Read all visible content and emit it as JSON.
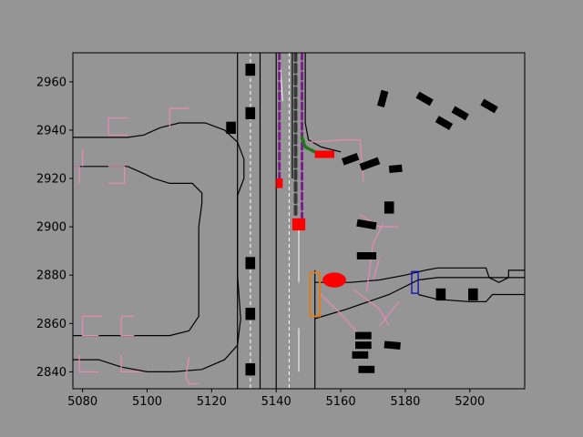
{
  "chart_data": {
    "type": "scatter",
    "title": "",
    "xlabel": "",
    "ylabel": "",
    "xlim": [
      5077,
      5217
    ],
    "ylim": [
      2833,
      2972
    ],
    "xticks": [
      5080,
      5100,
      5120,
      5140,
      5160,
      5180,
      5200
    ],
    "yticks": [
      2840,
      2860,
      2880,
      2900,
      2920,
      2940,
      2960
    ],
    "grid": false,
    "colors": {
      "figure_bg": "#949594",
      "axes_bg": "#949594",
      "road": "#000000",
      "crosswalk": "#e88bb3",
      "vehicle": "#000000",
      "ego": "#ff0000",
      "route": "#7b1f8a",
      "dashed_route": "#3a3a3a",
      "planned": "#1a7a1a",
      "lane_divider": "#ffffff",
      "ped_box": "#e07b1a",
      "gate": "#0000cc"
    },
    "road_edges": [
      [
        [
          5077,
          2937
        ],
        [
          5094,
          2937
        ],
        [
          5099,
          2938
        ],
        [
          5104,
          2941
        ],
        [
          5110,
          2943
        ],
        [
          5118,
          2943
        ],
        [
          5124,
          2940
        ],
        [
          5128,
          2935
        ],
        [
          5130,
          2928
        ],
        [
          5130,
          2920
        ],
        [
          5128,
          2913
        ],
        [
          5128,
          2880
        ],
        [
          5129,
          2862
        ],
        [
          5128,
          2851
        ],
        [
          5124,
          2845
        ],
        [
          5117,
          2841
        ],
        [
          5108,
          2840
        ],
        [
          5100,
          2840
        ],
        [
          5092,
          2842
        ],
        [
          5085,
          2845
        ],
        [
          5077,
          2845
        ]
      ],
      [
        [
          5077,
          2925
        ],
        [
          5094,
          2925
        ],
        [
          5099,
          2922
        ],
        [
          5102,
          2920
        ],
        [
          5107,
          2918
        ],
        [
          5114,
          2918
        ],
        [
          5117,
          2914
        ],
        [
          5117,
          2910
        ],
        [
          5116,
          2900
        ],
        [
          5116,
          2880
        ],
        [
          5116,
          2863
        ],
        [
          5113,
          2857
        ],
        [
          5107,
          2855
        ],
        [
          5095,
          2855
        ],
        [
          5077,
          2855
        ]
      ],
      [
        [
          5128,
          2972
        ],
        [
          5128,
          2833
        ]
      ],
      [
        [
          5135,
          2972
        ],
        [
          5135,
          2833
        ]
      ],
      [
        [
          5140,
          2972
        ],
        [
          5140,
          2833
        ]
      ],
      [
        [
          5145,
          2972
        ],
        [
          5145,
          2920
        ]
      ],
      [
        [
          5149,
          2972
        ],
        [
          5149,
          2943
        ],
        [
          5150,
          2936
        ],
        [
          5154,
          2933
        ],
        [
          5160,
          2931
        ]
      ],
      [
        [
          5152,
          2882
        ],
        [
          5152,
          2833
        ]
      ],
      [
        [
          5152,
          2862
        ],
        [
          5162,
          2866
        ],
        [
          5175,
          2872
        ],
        [
          5184,
          2878
        ],
        [
          5190,
          2879
        ],
        [
          5205,
          2879
        ],
        [
          5217,
          2879
        ]
      ],
      [
        [
          5152,
          2877
        ],
        [
          5163,
          2877
        ],
        [
          5172,
          2878
        ],
        [
          5180,
          2880
        ],
        [
          5186,
          2882
        ],
        [
          5190,
          2883
        ],
        [
          5205,
          2883
        ],
        [
          5206,
          2879
        ],
        [
          5209,
          2877
        ],
        [
          5212,
          2879
        ],
        [
          5212,
          2882
        ],
        [
          5217,
          2882
        ]
      ],
      [
        [
          5184,
          2872
        ],
        [
          5190,
          2870
        ],
        [
          5200,
          2869
        ],
        [
          5205,
          2869
        ],
        [
          5207,
          2872
        ],
        [
          5217,
          2872
        ]
      ]
    ],
    "lane_dividers": [
      {
        "points": [
          [
            5132,
            2972
          ],
          [
            5132,
            2833
          ]
        ],
        "dashed": true
      },
      [
        [
          5141,
          2972
        ],
        [
          5142,
          2952
        ]
      ],
      {
        "points": [
          [
            5144,
            2972
          ],
          [
            5144,
            2833
          ]
        ],
        "dashed": true
      },
      [
        [
          5147,
          2900
        ],
        [
          5147,
          2877
        ]
      ],
      [
        [
          5147,
          2858
        ],
        [
          5147,
          2840
        ]
      ]
    ],
    "crosswalks": [
      [
        [
          5077,
          2925
        ],
        [
          5079,
          2925
        ],
        [
          5079,
          2918
        ]
      ],
      [
        [
          5080,
          2932
        ],
        [
          5080,
          2925
        ]
      ],
      [
        [
          5088,
          2938
        ],
        [
          5088,
          2945
        ],
        [
          5094,
          2945
        ]
      ],
      [
        [
          5088,
          2938
        ],
        [
          5094,
          2938
        ]
      ],
      [
        [
          5107,
          2941
        ],
        [
          5107,
          2949
        ],
        [
          5113,
          2949
        ]
      ],
      [
        [
          5093,
          2925
        ],
        [
          5093,
          2918
        ],
        [
          5088,
          2918
        ]
      ],
      [
        [
          5093,
          2925
        ],
        [
          5088,
          2925
        ]
      ],
      [
        [
          5080,
          2863
        ],
        [
          5080,
          2855
        ],
        [
          5085,
          2855
        ]
      ],
      [
        [
          5080,
          2863
        ],
        [
          5086,
          2863
        ]
      ],
      [
        [
          5092,
          2863
        ],
        [
          5092,
          2855
        ],
        [
          5096,
          2855
        ]
      ],
      [
        [
          5092,
          2863
        ],
        [
          5096,
          2863
        ]
      ],
      [
        [
          5079,
          2847
        ],
        [
          5079,
          2840
        ],
        [
          5085,
          2840
        ]
      ],
      [
        [
          5092,
          2847
        ],
        [
          5092,
          2840
        ],
        [
          5098,
          2840
        ]
      ],
      [
        [
          5113,
          2846
        ],
        [
          5112,
          2838
        ],
        [
          5113,
          2835
        ],
        [
          5116,
          2835
        ]
      ],
      [
        [
          5150,
          2935
        ],
        [
          5161,
          2936
        ],
        [
          5166,
          2936
        ],
        [
          5167,
          2919
        ]
      ],
      [
        [
          5166,
          2905
        ],
        [
          5172,
          2900
        ],
        [
          5178,
          2900
        ]
      ],
      [
        [
          5168,
          2873
        ],
        [
          5170,
          2893
        ],
        [
          5173,
          2901
        ]
      ],
      [
        [
          5178,
          2869
        ],
        [
          5175,
          2864
        ],
        [
          5172,
          2859
        ]
      ],
      [
        [
          5164,
          2874
        ],
        [
          5172,
          2866
        ],
        [
          5175,
          2859
        ]
      ],
      [
        [
          5166,
          2855
        ],
        [
          5160,
          2864
        ],
        [
          5153,
          2873
        ]
      ],
      [
        [
          5172,
          2887
        ],
        [
          5170,
          2878
        ]
      ]
    ],
    "vehicles": [
      {
        "x": 5132,
        "y": 2965,
        "w": 3,
        "h": 5,
        "angle": 0
      },
      {
        "x": 5132,
        "y": 2947,
        "w": 3,
        "h": 5,
        "angle": 0
      },
      {
        "x": 5126,
        "y": 2941,
        "w": 3,
        "h": 5,
        "angle": 0
      },
      {
        "x": 5132,
        "y": 2885,
        "w": 3,
        "h": 5,
        "angle": 0
      },
      {
        "x": 5132,
        "y": 2864,
        "w": 3,
        "h": 5,
        "angle": 0
      },
      {
        "x": 5132,
        "y": 2841,
        "w": 3,
        "h": 5,
        "angle": 0
      },
      {
        "x": 5173,
        "y": 2953,
        "w": 5,
        "h": 3,
        "angle": 75
      },
      {
        "x": 5186,
        "y": 2953,
        "w": 5,
        "h": 3,
        "angle": -30
      },
      {
        "x": 5192,
        "y": 2943,
        "w": 5,
        "h": 3,
        "angle": -30
      },
      {
        "x": 5197,
        "y": 2947,
        "w": 5,
        "h": 3,
        "angle": -30
      },
      {
        "x": 5206,
        "y": 2950,
        "w": 5,
        "h": 3,
        "angle": -30
      },
      {
        "x": 5163,
        "y": 2928,
        "w": 5,
        "h": 3,
        "angle": 20
      },
      {
        "x": 5169,
        "y": 2926,
        "w": 6,
        "h": 3,
        "angle": 20
      },
      {
        "x": 5177,
        "y": 2924,
        "w": 4,
        "h": 3,
        "angle": 5
      },
      {
        "x": 5168,
        "y": 2901,
        "w": 6,
        "h": 3,
        "angle": -10
      },
      {
        "x": 5175,
        "y": 2908,
        "w": 3,
        "h": 5,
        "angle": 0
      },
      {
        "x": 5168,
        "y": 2888,
        "w": 6,
        "h": 3,
        "angle": 0
      },
      {
        "x": 5191,
        "y": 2872,
        "w": 3,
        "h": 5,
        "angle": 0
      },
      {
        "x": 5201,
        "y": 2872,
        "w": 3,
        "h": 5,
        "angle": 0
      },
      {
        "x": 5167,
        "y": 2855,
        "w": 5,
        "h": 3,
        "angle": 0
      },
      {
        "x": 5176,
        "y": 2851,
        "w": 5,
        "h": 3,
        "angle": -5
      },
      {
        "x": 5167,
        "y": 2851,
        "w": 5,
        "h": 3,
        "angle": 0
      },
      {
        "x": 5166,
        "y": 2847,
        "w": 5,
        "h": 3,
        "angle": 0
      },
      {
        "x": 5168,
        "y": 2841,
        "w": 5,
        "h": 3,
        "angle": 0
      }
    ],
    "ego_vehicles": [
      {
        "x": 5141,
        "y": 2918,
        "w": 2,
        "h": 4,
        "angle": 0
      },
      {
        "x": 5147,
        "y": 2901,
        "w": 4,
        "h": 5,
        "angle": 0
      },
      {
        "x": 5155,
        "y": 2930,
        "w": 6,
        "h": 3,
        "angle": 0
      }
    ],
    "ego_circle": {
      "x": 5158,
      "y": 2878,
      "r": 1.4
    },
    "routes": [
      {
        "kind": "route",
        "points": [
          [
            5141,
            2972
          ],
          [
            5141,
            2920
          ]
        ]
      },
      {
        "kind": "dashed_route",
        "points": [
          [
            5146,
            2972
          ],
          [
            5146,
            2904
          ]
        ]
      },
      {
        "kind": "route",
        "points": [
          [
            5148,
            2972
          ],
          [
            5148,
            2903
          ]
        ]
      },
      {
        "kind": "planned",
        "points": [
          [
            5148,
            2937
          ],
          [
            5149,
            2933
          ],
          [
            5152,
            2931
          ],
          [
            5156,
            2930
          ]
        ]
      }
    ],
    "ped_box": {
      "x": 5152,
      "y": 2872,
      "w": 3,
      "h": 18
    },
    "gates": [
      {
        "x": 5183,
        "y": 2877,
        "w": 2,
        "h": 9
      }
    ]
  }
}
